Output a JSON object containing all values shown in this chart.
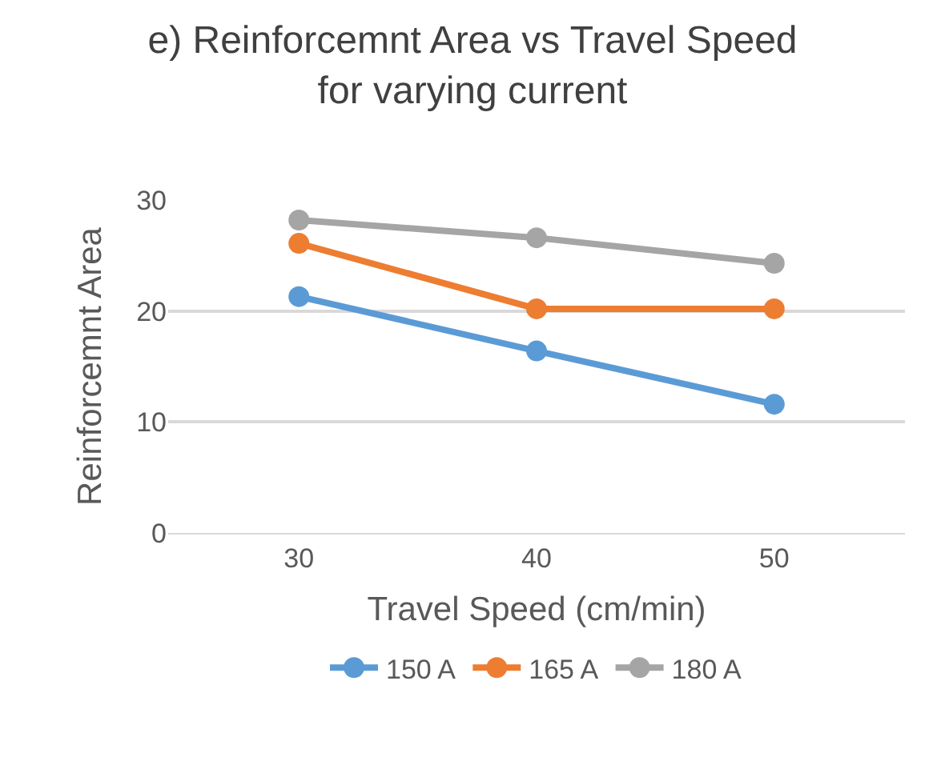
{
  "chart_data": {
    "type": "line",
    "title": "e) Reinforcemnt Area vs Travel Speed for varying current",
    "xlabel": "Travel Speed (cm/min)",
    "ylabel": "Reinforcemnt Area",
    "categories": [
      "30",
      "40",
      "50"
    ],
    "series": [
      {
        "name": "150 A",
        "color": "#5b9bd5",
        "values": [
          21.3,
          16.4,
          11.6
        ]
      },
      {
        "name": "165 A",
        "color": "#ed7d31",
        "values": [
          26.1,
          20.2,
          20.2
        ]
      },
      {
        "name": "180 A",
        "color": "#a5a5a5",
        "values": [
          28.2,
          26.6,
          24.3
        ]
      }
    ],
    "ylim": [
      0,
      30
    ],
    "yticks": [
      0,
      10,
      20,
      30
    ],
    "grid": "y",
    "legend": "bottom",
    "marker": "circle",
    "line_style": "solid"
  }
}
